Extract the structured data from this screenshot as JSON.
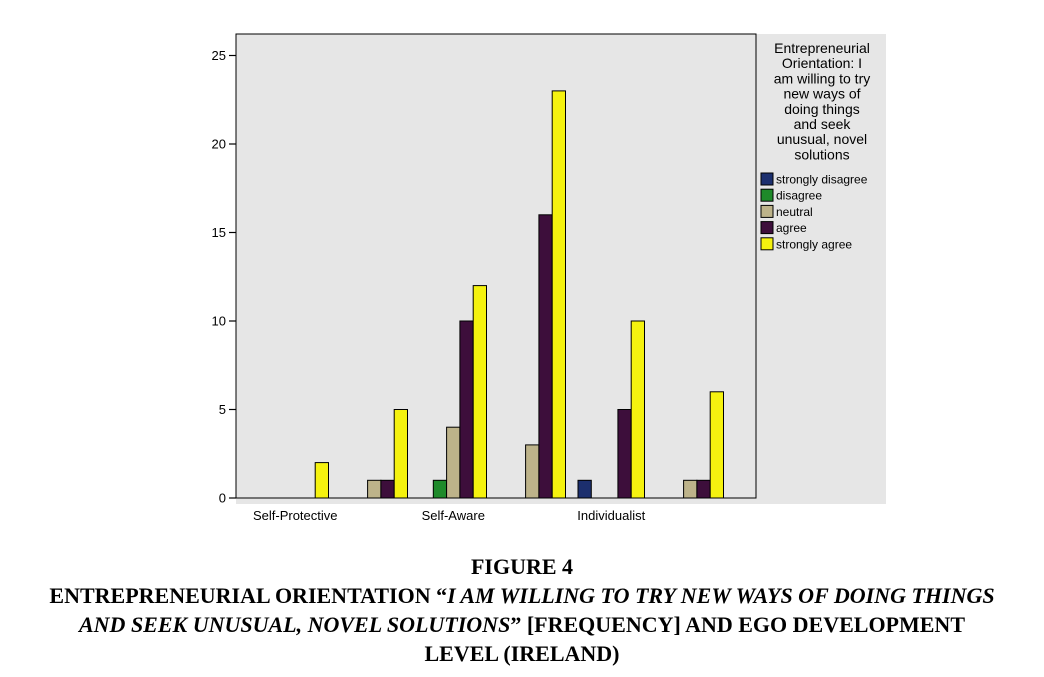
{
  "chart_data": {
    "type": "bar",
    "categories": [
      "Self-Protective",
      "",
      "Self-Aware",
      "",
      "Individualist",
      ""
    ],
    "series": [
      {
        "name": "strongly disagree",
        "color": "#1c2f6e",
        "values": [
          0,
          0,
          0,
          0,
          1,
          0
        ]
      },
      {
        "name": "disagree",
        "color": "#1e8a2a",
        "values": [
          0,
          0,
          1,
          0,
          0,
          0
        ]
      },
      {
        "name": "neutral",
        "color": "#bdb38a",
        "values": [
          0,
          1,
          4,
          3,
          0,
          1
        ]
      },
      {
        "name": "agree",
        "color": "#3d0e3b",
        "values": [
          0,
          1,
          10,
          16,
          5,
          1
        ]
      },
      {
        "name": "strongly agree",
        "color": "#f5f20f",
        "values": [
          2,
          5,
          12,
          23,
          10,
          6
        ]
      }
    ],
    "ylim": [
      0,
      25
    ],
    "yticks": [
      "0",
      "5",
      "10",
      "15",
      "20",
      "25"
    ],
    "legend_title": [
      "Entrepreneurial",
      "Orientation: I",
      "am willing to try",
      "new ways of",
      "doing things",
      "and seek",
      "unusual, novel",
      "solutions"
    ],
    "legend_position": "right",
    "plot_background": "#e6e6e6",
    "grid": false
  },
  "caption": {
    "figure_label": "FIGURE 4",
    "part1": "ENTREPRENEURIAL ORIENTATION “",
    "italic": "I AM WILLING TO TRY NEW WAYS OF DOING THINGS AND SEEK UNUSUAL, NOVEL SOLUTIONS",
    "part2": "” [FREQUENCY] AND EGO DEVELOPMENT LEVEL (IRELAND)"
  }
}
